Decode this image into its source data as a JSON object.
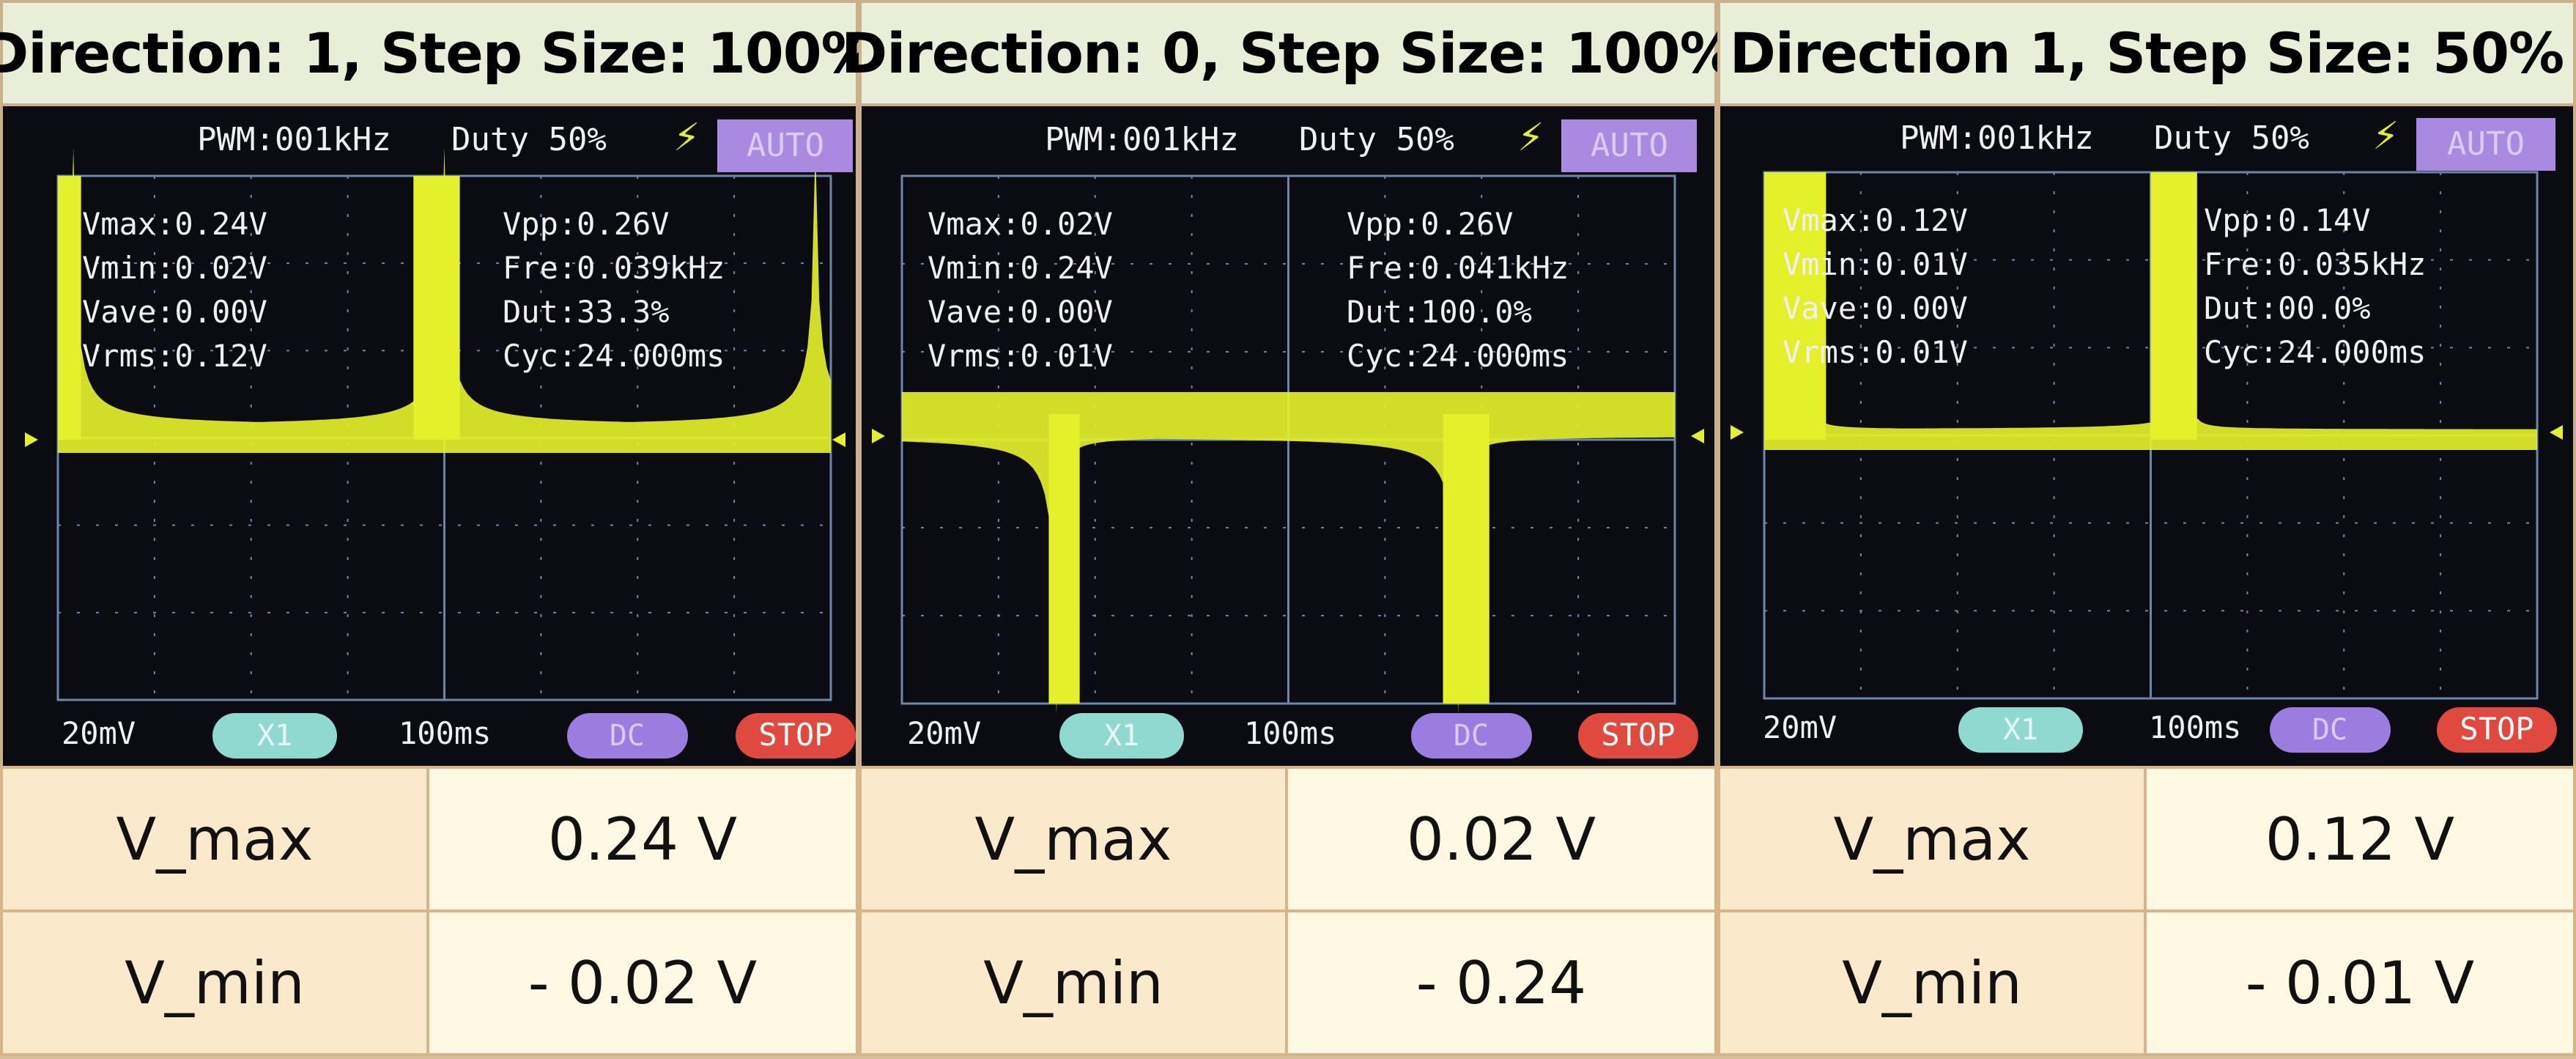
{
  "panels": [
    {
      "title": "Direction: 1, Step Size: 100%",
      "screen": {
        "top_left": "PWM:001kHz",
        "duty": "Duty 50%",
        "mode": "AUTO",
        "left_stats": [
          "Vmax:0.24V",
          "Vmin:0.02V",
          "Vave:0.00V",
          "Vrms:0.12V"
        ],
        "right_stats": [
          "Vpp:0.26V",
          "Fre:0.039kHz",
          "Dut:33.3%",
          "Cyc:24.000ms"
        ],
        "bottom": {
          "volt_div": "20mV",
          "probe": "X1",
          "time_div": "100ms",
          "coupling": "DC",
          "run": "STOP"
        }
      },
      "rows": [
        {
          "label": "V_max",
          "value": "0.24 V"
        },
        {
          "label": "V_min",
          "value": "- 0.02 V"
        }
      ]
    },
    {
      "title": "Direction: 0, Step Size: 100%",
      "screen": {
        "top_left": "PWM:001kHz",
        "duty": "Duty 50%",
        "mode": "AUTO",
        "left_stats": [
          "Vmax:0.02V",
          "Vmin:0.24V",
          "Vave:0.00V",
          "Vrms:0.01V"
        ],
        "right_stats": [
          "Vpp:0.26V",
          "Fre:0.041kHz",
          "Dut:100.0%",
          "Cyc:24.000ms"
        ],
        "bottom": {
          "volt_div": "20mV",
          "probe": "X1",
          "time_div": "100ms",
          "coupling": "DC",
          "run": "STOP"
        }
      },
      "rows": [
        {
          "label": "V_max",
          "value": "0.02 V"
        },
        {
          "label": "V_min",
          "value": "- 0.24"
        }
      ]
    },
    {
      "title": "Direction 1, Step Size: 50%",
      "screen": {
        "top_left": "PWM:001kHz",
        "duty": "Duty 50%",
        "mode": "AUTO",
        "left_stats": [
          "Vmax:0.12V",
          "Vmin:0.01V",
          "Vave:0.00V",
          "Vrms:0.01V"
        ],
        "right_stats": [
          "Vpp:0.14V",
          "Fre:0.035kHz",
          "Dut:00.0%",
          "Cyc:24.000ms"
        ],
        "bottom": {
          "volt_div": "20mV",
          "probe": "X1",
          "time_div": "100ms",
          "coupling": "DC",
          "run": "STOP"
        }
      },
      "rows": [
        {
          "label": "V_max",
          "value": "0.12 V"
        },
        {
          "label": "V_min",
          "value": "- 0.01 V"
        }
      ]
    }
  ],
  "colors": {
    "trace": "#e4f029",
    "grid": "#6a86a8",
    "text": "#f0f0f0",
    "auto_bg": "#a98ae0",
    "probe_bg": "#8fd9d0",
    "dc_bg": "#9b7de0",
    "stop_bg": "#e0493d"
  }
}
